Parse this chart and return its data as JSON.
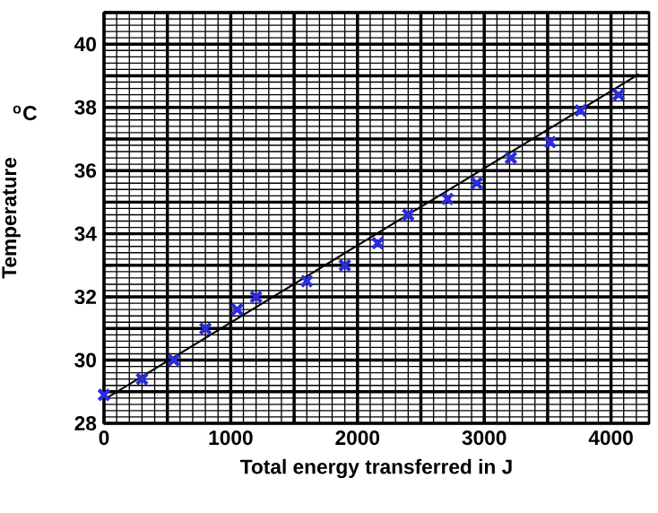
{
  "chart_data": {
    "type": "scatter",
    "xlabel": "Total energy transferred in J",
    "ylabel": "Temperature",
    "annotations": [
      "$^{o}$C"
    ],
    "xlim": [
      0,
      4300
    ],
    "ylim": [
      28,
      41
    ],
    "xticks": [
      0,
      {
        "value": 500,
        "label": null
      },
      1000,
      {
        "value": 1500,
        "label": null
      },
      2000,
      {
        "value": 2500,
        "label": null
      },
      3000,
      {
        "value": 3500,
        "label": null
      },
      4000
    ],
    "yticks": [
      28,
      {
        "value": 29,
        "label": null
      },
      30,
      {
        "value": 31,
        "label": null
      },
      32,
      {
        "value": 33,
        "label": null
      },
      34,
      {
        "value": 35,
        "label": null
      },
      36,
      {
        "value": 37,
        "label": null
      },
      38,
      {
        "value": 39,
        "label": null
      },
      40,
      {
        "value": 41,
        "label": null
      }
    ],
    "grid": true,
    "series": [
      {
        "marker": "cross",
        "color": "#2b2bdf",
        "x": [
          0,
          300,
          550,
          800,
          1050,
          1200,
          1600,
          1900,
          2160,
          2400,
          2710,
          2940,
          3210,
          3520,
          3760,
          4060
        ],
        "values": [
          28.9,
          29.4,
          30.0,
          31.0,
          31.6,
          32.0,
          32.5,
          33.0,
          33.7,
          34.6,
          35.1,
          35.6,
          36.4,
          36.9,
          37.9,
          38.4
        ]
      },
      {
        "type": "line",
        "marker": "none",
        "line_style": "solid",
        "color": "#000000",
        "x": [
          0,
          4220
        ],
        "values": [
          28.75,
          39.05
        ]
      }
    ]
  }
}
